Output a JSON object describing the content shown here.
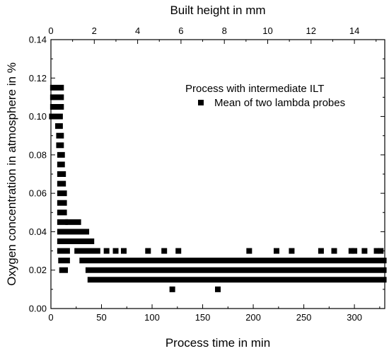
{
  "chart_data": {
    "type": "scatter",
    "xlabel": "Process time in min",
    "x2label": "Built height in mm",
    "ylabel": "Oxygen concentration in atmosphere in %",
    "xlim": [
      0,
      330
    ],
    "x2lim": [
      0,
      15.4
    ],
    "ylim": [
      0,
      0.14
    ],
    "x_ticks": [
      0,
      50,
      100,
      150,
      200,
      250,
      300
    ],
    "x2_ticks": [
      0,
      2,
      4,
      6,
      8,
      10,
      12,
      14
    ],
    "y_ticks": [
      0.0,
      0.02,
      0.04,
      0.06,
      0.08,
      0.1,
      0.12,
      0.14
    ],
    "x_tick_labels": [
      "0",
      "50",
      "100",
      "150",
      "200",
      "250",
      "300"
    ],
    "x2_tick_labels": [
      "0",
      "2",
      "4",
      "6",
      "8",
      "10",
      "12",
      "14"
    ],
    "y_tick_labels": [
      "0.00",
      "0.02",
      "0.04",
      "0.06",
      "0.08",
      "0.10",
      "0.12",
      "0.14"
    ],
    "grid": false,
    "legend_position": "top-right",
    "legend_title": "Process with intermediate ILT",
    "series": [
      {
        "name": "Mean of two lambda probes",
        "marker": "square",
        "color": "#000000",
        "segments": [
          {
            "y": 0.115,
            "x": [
              2,
              10
            ]
          },
          {
            "y": 0.11,
            "x": [
              2,
              10
            ]
          },
          {
            "y": 0.105,
            "x": [
              2,
              10
            ]
          },
          {
            "y": 0.1,
            "x": [
              1,
              9
            ]
          },
          {
            "y": 0.095,
            "x": [
              7,
              9
            ]
          },
          {
            "y": 0.09,
            "x": [
              8,
              10
            ]
          },
          {
            "y": 0.085,
            "x": [
              8,
              10
            ]
          },
          {
            "y": 0.08,
            "x": [
              9,
              11
            ]
          },
          {
            "y": 0.075,
            "x": [
              9,
              11
            ]
          },
          {
            "y": 0.07,
            "x": [
              9,
              12
            ]
          },
          {
            "y": 0.065,
            "x": [
              9,
              12
            ]
          },
          {
            "y": 0.06,
            "x": [
              9,
              13
            ]
          },
          {
            "y": 0.055,
            "x": [
              9,
              13
            ]
          },
          {
            "y": 0.05,
            "x": [
              9,
              13
            ]
          },
          {
            "y": 0.045,
            "x": [
              9,
              14
            ]
          },
          {
            "y": 0.045,
            "x": [
              17,
              27
            ]
          },
          {
            "y": 0.04,
            "x": [
              9,
              35
            ]
          },
          {
            "y": 0.035,
            "x": [
              9,
              40
            ]
          },
          {
            "y": 0.03,
            "x": [
              9,
              16
            ]
          },
          {
            "y": 0.03,
            "x": [
              26,
              46
            ]
          },
          {
            "y": 0.025,
            "x": [
              10,
              16
            ]
          },
          {
            "y": 0.025,
            "x": [
              31,
              329
            ]
          },
          {
            "y": 0.02,
            "x": [
              11,
              14
            ]
          },
          {
            "y": 0.02,
            "x": [
              37,
              329
            ]
          },
          {
            "y": 0.015,
            "x": [
              39,
              329
            ]
          }
        ],
        "points": [
          {
            "x": 55,
            "y": 0.03
          },
          {
            "x": 64,
            "y": 0.03
          },
          {
            "x": 72,
            "y": 0.03
          },
          {
            "x": 96,
            "y": 0.03
          },
          {
            "x": 112,
            "y": 0.03
          },
          {
            "x": 126,
            "y": 0.03
          },
          {
            "x": 196,
            "y": 0.03
          },
          {
            "x": 223,
            "y": 0.03
          },
          {
            "x": 238,
            "y": 0.03
          },
          {
            "x": 267,
            "y": 0.03
          },
          {
            "x": 280,
            "y": 0.03
          },
          {
            "x": 297,
            "y": 0.03
          },
          {
            "x": 300,
            "y": 0.03
          },
          {
            "x": 310,
            "y": 0.03
          },
          {
            "x": 322,
            "y": 0.03
          },
          {
            "x": 326,
            "y": 0.03
          },
          {
            "x": 120,
            "y": 0.01
          },
          {
            "x": 165,
            "y": 0.01
          }
        ]
      }
    ]
  }
}
